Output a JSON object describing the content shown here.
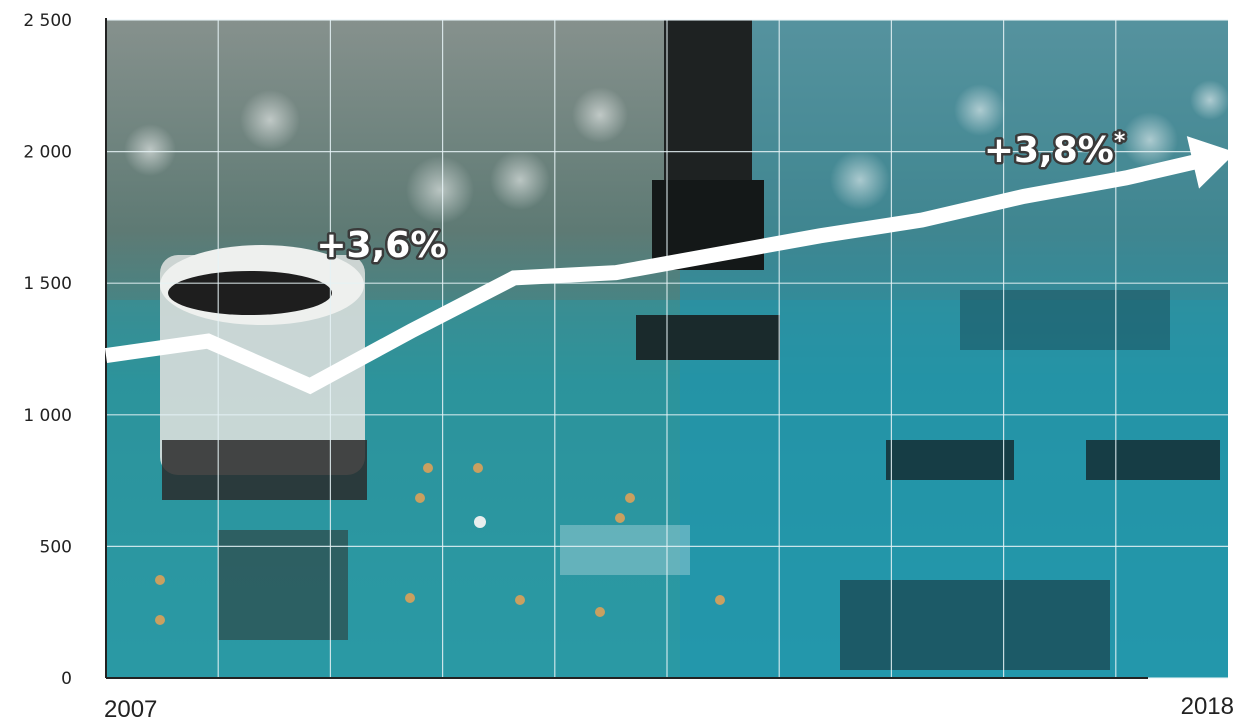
{
  "chart_data": {
    "type": "line",
    "x": [
      2007,
      2008,
      2009,
      2010,
      2011,
      2012,
      2013,
      2014,
      2015,
      2016,
      2017,
      2018
    ],
    "xticklabels": [
      "2007",
      "2018"
    ],
    "series": [
      {
        "values": [
          1225,
          1280,
          1110,
          1320,
          1520,
          1540,
          1610,
          1680,
          1740,
          1830,
          1900,
          1990
        ]
      }
    ],
    "ylim": [
      0,
      2500
    ],
    "yticks": [
      0,
      500,
      1000,
      1500,
      2000,
      2500
    ],
    "ytick_labels": [
      "0",
      "500",
      "1 000",
      "1 500",
      "2 000",
      "2 500"
    ],
    "grid": true,
    "annotations": [
      {
        "label": "+3,6%",
        "x": 2009.7,
        "y": 1600
      },
      {
        "label": "+3,8%",
        "sup": "*",
        "x": 2016.3,
        "y": 1960
      }
    ],
    "colors": {
      "line": "#ffffff",
      "grid": "#e6f3f6",
      "axis": "#222222",
      "background_top": "#7f8a86",
      "background_bottom": "#2f9aa8",
      "overlay": "#1d96b3"
    }
  }
}
